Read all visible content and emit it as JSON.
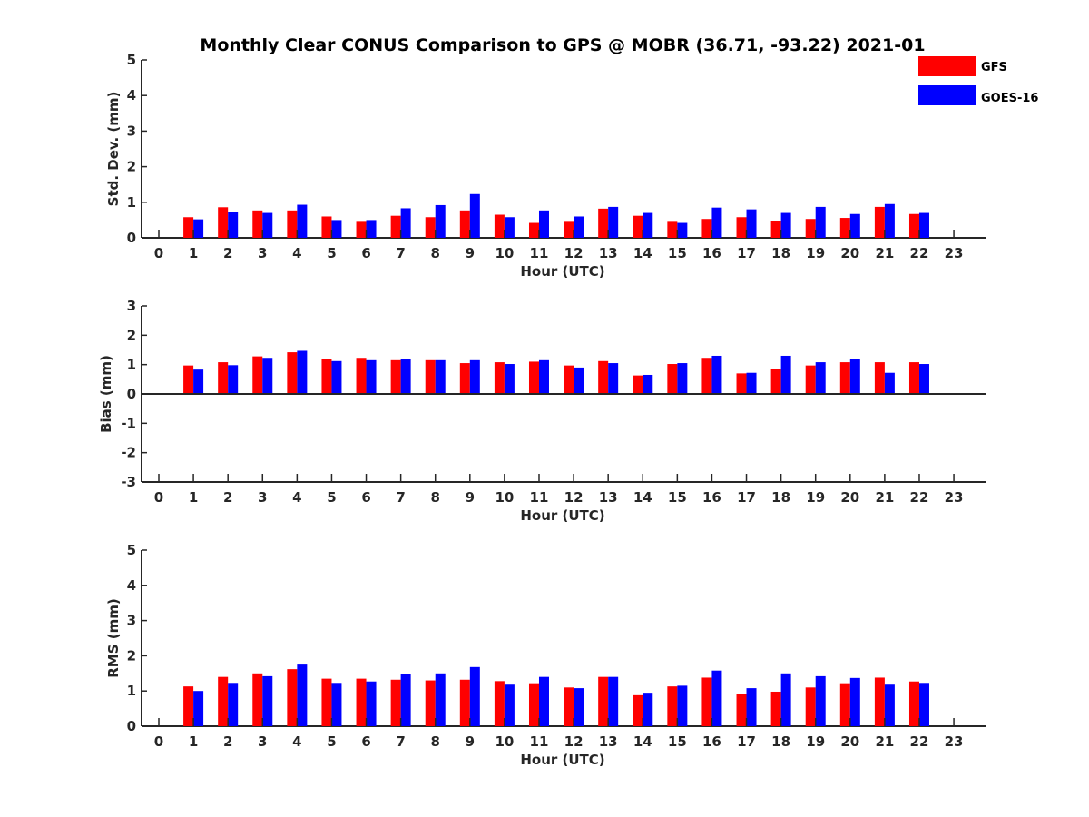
{
  "chart_data": {
    "type": "bar",
    "title": "Monthly Clear CONUS Comparison to GPS @ MOBR (36.71, -93.22) 2021-01",
    "legend": {
      "position": "top-right",
      "entries": [
        {
          "name": "GFS",
          "color": "#ff0000"
        },
        {
          "name": "GOES-16",
          "color": "#0000ff"
        }
      ]
    },
    "colors": {
      "GFS": "#ff0000",
      "GOES-16": "#0000ff",
      "axis": "#262626"
    },
    "panels": [
      {
        "id": "std",
        "ylabel": "Std. Dev. (mm)",
        "xlabel": "Hour (UTC)",
        "ylim": [
          0,
          5
        ],
        "yticks": [
          0,
          1,
          2,
          3,
          4,
          5
        ],
        "xticks": [
          "0",
          "1",
          "2",
          "3",
          "4",
          "5",
          "6",
          "7",
          "8",
          "9",
          "10",
          "11",
          "12",
          "13",
          "14",
          "15",
          "16",
          "17",
          "18",
          "19",
          "20",
          "21",
          "22",
          "23"
        ],
        "series": [
          {
            "name": "GFS",
            "values": [
              null,
              0.58,
              0.86,
              0.77,
              0.77,
              0.6,
              0.45,
              0.62,
              0.58,
              0.77,
              0.65,
              0.42,
              0.45,
              0.82,
              0.62,
              0.45,
              0.53,
              0.58,
              0.47,
              0.53,
              0.56,
              0.87,
              0.67,
              null
            ]
          },
          {
            "name": "GOES-16",
            "values": [
              null,
              0.52,
              0.72,
              0.7,
              0.93,
              0.5,
              0.5,
              0.83,
              0.92,
              1.23,
              0.58,
              0.77,
              0.6,
              0.87,
              0.7,
              0.42,
              0.85,
              0.8,
              0.7,
              0.87,
              0.67,
              0.95,
              0.7,
              null
            ]
          }
        ]
      },
      {
        "id": "bias",
        "ylabel": "Bias (mm)",
        "xlabel": "Hour (UTC)",
        "ylim": [
          -3,
          3
        ],
        "yticks": [
          -3,
          -2,
          -1,
          0,
          1,
          2,
          3
        ],
        "xticks": [
          "0",
          "1",
          "2",
          "3",
          "4",
          "5",
          "6",
          "7",
          "8",
          "9",
          "10",
          "11",
          "12",
          "13",
          "14",
          "15",
          "16",
          "17",
          "18",
          "19",
          "20",
          "21",
          "22",
          "23"
        ],
        "series": [
          {
            "name": "GFS",
            "values": [
              null,
              0.97,
              1.08,
              1.28,
              1.42,
              1.2,
              1.23,
              1.15,
              1.15,
              1.05,
              1.08,
              1.1,
              0.97,
              1.12,
              0.63,
              1.02,
              1.23,
              0.7,
              0.85,
              0.97,
              1.08,
              1.08,
              1.08,
              null
            ]
          },
          {
            "name": "GOES-16",
            "values": [
              null,
              0.83,
              0.98,
              1.23,
              1.47,
              1.12,
              1.15,
              1.2,
              1.15,
              1.15,
              1.02,
              1.15,
              0.9,
              1.05,
              0.65,
              1.05,
              1.3,
              0.72,
              1.3,
              1.08,
              1.18,
              0.72,
              1.02,
              null
            ]
          }
        ]
      },
      {
        "id": "rms",
        "ylabel": "RMS (mm)",
        "xlabel": "Hour (UTC)",
        "ylim": [
          0,
          5
        ],
        "yticks": [
          0,
          1,
          2,
          3,
          4,
          5
        ],
        "xticks": [
          "0",
          "1",
          "2",
          "3",
          "4",
          "5",
          "6",
          "7",
          "8",
          "9",
          "10",
          "11",
          "12",
          "13",
          "14",
          "15",
          "16",
          "17",
          "18",
          "19",
          "20",
          "21",
          "22",
          "23"
        ],
        "series": [
          {
            "name": "GFS",
            "values": [
              null,
              1.13,
              1.4,
              1.5,
              1.62,
              1.35,
              1.35,
              1.32,
              1.3,
              1.32,
              1.28,
              1.22,
              1.1,
              1.4,
              0.88,
              1.13,
              1.38,
              0.92,
              0.98,
              1.1,
              1.22,
              1.38,
              1.27,
              null
            ]
          },
          {
            "name": "GOES-16",
            "values": [
              null,
              1.0,
              1.23,
              1.42,
              1.75,
              1.23,
              1.27,
              1.47,
              1.5,
              1.68,
              1.18,
              1.4,
              1.08,
              1.4,
              0.95,
              1.15,
              1.58,
              1.08,
              1.5,
              1.42,
              1.37,
              1.18,
              1.23,
              null
            ]
          }
        ]
      }
    ]
  }
}
